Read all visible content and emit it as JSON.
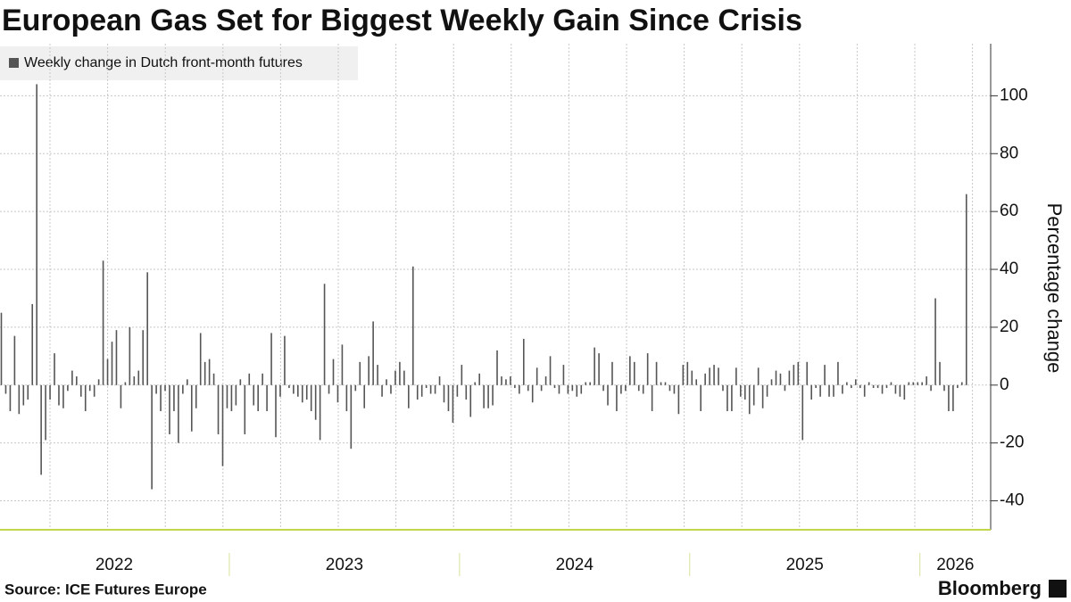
{
  "chart_data": {
    "type": "bar",
    "title": "European Gas Set for Biggest Weekly Gain Since Crisis",
    "legend": "Weekly change in Dutch front-month futures",
    "y_label": "Percentage change",
    "source": "Source: ICE Futures Europe",
    "logo": "Bloomberg",
    "color": "#555555",
    "grid": true,
    "ylim": [
      -50,
      118
    ],
    "yticks": [
      -40,
      -20,
      0,
      20,
      40,
      60,
      80,
      100
    ],
    "categories": [
      "2022",
      null,
      null,
      null,
      null,
      null,
      null,
      null,
      null,
      null,
      null,
      null,
      null,
      null,
      null,
      null,
      null,
      null,
      null,
      null,
      null,
      null,
      null,
      null,
      null,
      null,
      null,
      null,
      null,
      null,
      null,
      null,
      null,
      null,
      null,
      null,
      null,
      null,
      null,
      null,
      null,
      null,
      null,
      null,
      null,
      null,
      null,
      null,
      null,
      null,
      null,
      null,
      "2023",
      null,
      null,
      null,
      null,
      null,
      null,
      null,
      null,
      null,
      null,
      null,
      null,
      null,
      null,
      null,
      null,
      null,
      null,
      null,
      null,
      null,
      null,
      null,
      null,
      null,
      null,
      null,
      null,
      null,
      null,
      null,
      null,
      null,
      null,
      null,
      null,
      null,
      null,
      null,
      null,
      null,
      null,
      null,
      null,
      null,
      null,
      null,
      null,
      null,
      null,
      null,
      "2024",
      null,
      null,
      null,
      null,
      null,
      null,
      null,
      null,
      null,
      null,
      null,
      null,
      null,
      null,
      null,
      null,
      null,
      null,
      null,
      null,
      null,
      null,
      null,
      null,
      null,
      null,
      null,
      null,
      null,
      null,
      null,
      null,
      null,
      null,
      null,
      null,
      null,
      null,
      null,
      null,
      null,
      null,
      null,
      null,
      null,
      null,
      null,
      null,
      null,
      null,
      null,
      "2025",
      null,
      null,
      null,
      null,
      null,
      null,
      null,
      null,
      null,
      null,
      null,
      null,
      null,
      null,
      null,
      null,
      null,
      null,
      null,
      null,
      null,
      null,
      null,
      null,
      null,
      null,
      null,
      null,
      null,
      null,
      null,
      null,
      null,
      null,
      null,
      null,
      null,
      null,
      null,
      null,
      null,
      null,
      null,
      null,
      null,
      null,
      null,
      null,
      null,
      null,
      null,
      "2026",
      null,
      null,
      null,
      null,
      null,
      null,
      null,
      null,
      null,
      null
    ],
    "values": [
      25,
      -3,
      -9,
      17,
      -10,
      -7,
      -5,
      28,
      104,
      -31,
      -19,
      -5,
      11,
      -7,
      -8,
      -2,
      5,
      3,
      -4,
      -9,
      -2,
      -4,
      2,
      43,
      9,
      15,
      19,
      -8,
      1,
      20,
      3,
      5,
      19,
      39,
      -36,
      -3,
      -9,
      -2,
      -17,
      -9,
      -20,
      -3,
      2,
      -16,
      -8,
      18,
      8,
      9,
      4,
      -17,
      -28,
      -8,
      -9,
      -7,
      2,
      -17,
      4,
      -7,
      -9,
      4,
      -9,
      18,
      -18,
      -4,
      17,
      -1,
      -3,
      -4,
      -6,
      -5,
      -9,
      -12,
      -19,
      35,
      -3,
      9,
      -6,
      14,
      -9,
      -22,
      -2,
      8,
      -8,
      10,
      22,
      7,
      -4,
      2,
      -3,
      5,
      8,
      5,
      -8,
      41,
      -5,
      -4,
      -1,
      -3,
      -3,
      3,
      -6,
      -9,
      -13,
      -4,
      7,
      -5,
      -11,
      1,
      4,
      -8,
      -8,
      -7,
      12,
      3,
      2,
      3,
      -1,
      -3,
      16,
      -2,
      -6,
      6,
      -2,
      3,
      10,
      -1,
      -3,
      7,
      -3,
      -2,
      -4,
      -3,
      1,
      1,
      13,
      11,
      -2,
      -7,
      8,
      -9,
      -3,
      -2,
      10,
      8,
      -2,
      -3,
      11,
      -9,
      8,
      1,
      1,
      -2,
      -3,
      -10,
      7,
      8,
      5,
      2,
      -9,
      4,
      6,
      7,
      6,
      -2,
      -9,
      -9,
      6,
      -4,
      -5,
      -10,
      -7,
      6,
      -8,
      -4,
      2,
      5,
      4,
      -2,
      5,
      7,
      8,
      -19,
      8,
      -5,
      -1,
      -4,
      7,
      -4,
      -4,
      8,
      -3,
      1,
      -1,
      2,
      -1,
      -4,
      1,
      -1,
      -1,
      -3,
      -1,
      1,
      -3,
      -4,
      -5,
      1,
      1,
      1,
      1,
      3,
      -2,
      30,
      8,
      -2,
      -9,
      -9,
      -1,
      1,
      66
    ]
  }
}
